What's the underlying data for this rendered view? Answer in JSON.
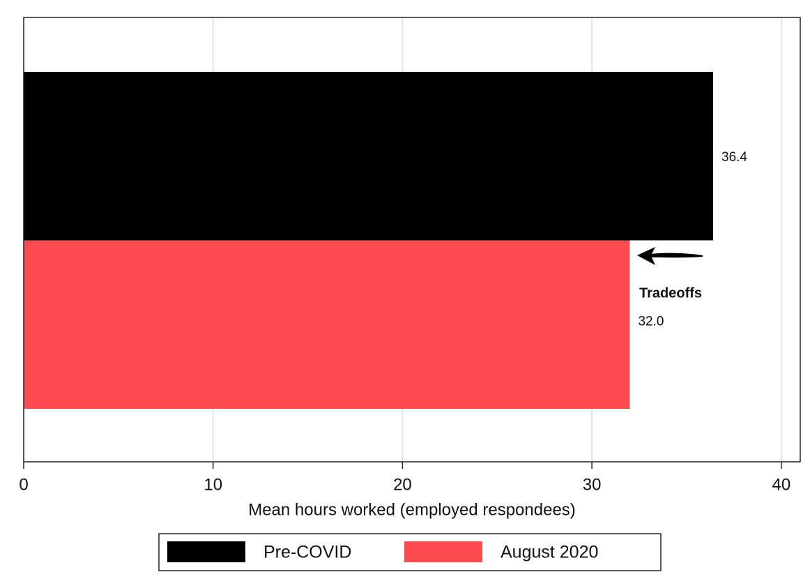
{
  "chart_data": {
    "type": "barh",
    "xlabel": "Mean hours worked (employed respondees)",
    "series": [
      {
        "name": "Pre-COVID",
        "color": "#000000",
        "values": [
          36.4
        ]
      },
      {
        "name": "August 2020",
        "color": "#ff4a50",
        "values": [
          32.0
        ],
        "value_labels": [
          "32.0"
        ]
      }
    ],
    "annotations": [
      {
        "text": "Tradeoffs"
      }
    ],
    "xlim": [
      0,
      41
    ],
    "xticks": [
      0,
      10,
      20,
      30,
      40
    ],
    "grid": true,
    "legend": "bottom"
  }
}
